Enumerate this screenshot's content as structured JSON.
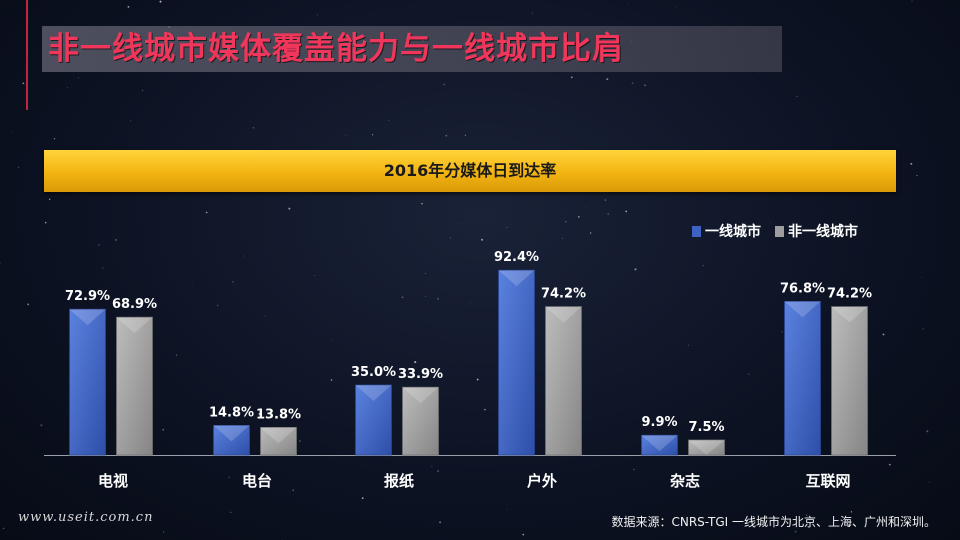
{
  "title": "非一线城市媒体覆盖能力与一线城市比肩",
  "chart_data": {
    "type": "bar",
    "title": "2016年分媒体日到达率",
    "categories": [
      "电视",
      "电台",
      "报纸",
      "户外",
      "杂志",
      "互联网"
    ],
    "series": [
      {
        "name": "一线城市",
        "color": "#3d62c4",
        "values": [
          72.9,
          14.8,
          35.0,
          92.4,
          9.9,
          76.8
        ],
        "labels": [
          "72.9%",
          "14.8%",
          "35.0%",
          "92.4%",
          "9.9%",
          "76.8%"
        ]
      },
      {
        "name": "非一线城市",
        "color": "#9e9e9e",
        "values": [
          68.9,
          13.8,
          33.9,
          74.2,
          7.5,
          74.2
        ],
        "labels": [
          "68.9%",
          "13.8%",
          "33.9%",
          "74.2%",
          "7.5%",
          "74.2%"
        ]
      }
    ],
    "ylim": [
      0,
      100
    ],
    "grid": false,
    "legend_position": "top-right"
  },
  "watermark": "www.useit.com.cn",
  "source": "数据来源：CNRS-TGI 一线城市为北京、上海、广州和深圳。"
}
